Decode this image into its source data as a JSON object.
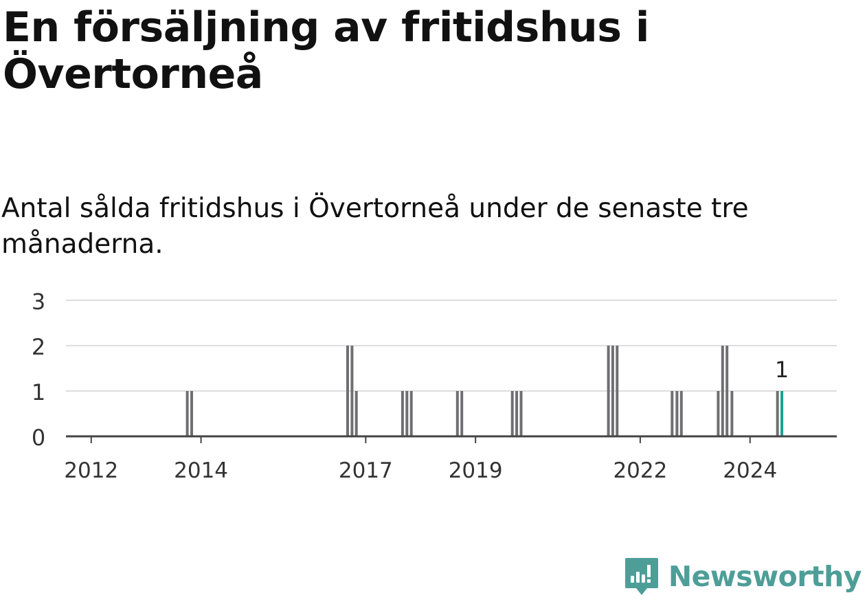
{
  "title": "En försäljning av fritidshus i Övertorneå",
  "subtitle": "Antal sålda fritidshus i Övertorneå under de senaste tre månaderna.",
  "brand": {
    "name": "Newsworthy",
    "color": "#4e9e98"
  },
  "chart_data": {
    "type": "bar",
    "ylim": [
      0,
      3
    ],
    "yticks": [
      "0",
      "1",
      "2",
      "3"
    ],
    "xlim": [
      2011.54,
      2025.58
    ],
    "xticks": [
      {
        "label": "2012",
        "value": 2012.0
      },
      {
        "label": "2014",
        "value": 2014.0
      },
      {
        "label": "2017",
        "value": 2017.0
      },
      {
        "label": "2019",
        "value": 2019.0
      },
      {
        "label": "2022",
        "value": 2022.0
      },
      {
        "label": "2024",
        "value": 2024.0
      }
    ],
    "grid": true,
    "bar_color": "#6f6f72",
    "highlight_color": "#1a9e8f",
    "series": [
      {
        "values": [
          {
            "x": 2013.75,
            "y": 1
          },
          {
            "x": 2013.83,
            "y": 1
          },
          {
            "x": 2016.67,
            "y": 2
          },
          {
            "x": 2016.75,
            "y": 2
          },
          {
            "x": 2016.83,
            "y": 1
          },
          {
            "x": 2017.67,
            "y": 1
          },
          {
            "x": 2017.75,
            "y": 1
          },
          {
            "x": 2017.83,
            "y": 1
          },
          {
            "x": 2018.67,
            "y": 1
          },
          {
            "x": 2018.75,
            "y": 1
          },
          {
            "x": 2019.67,
            "y": 1
          },
          {
            "x": 2019.75,
            "y": 1
          },
          {
            "x": 2019.83,
            "y": 1
          },
          {
            "x": 2021.42,
            "y": 2
          },
          {
            "x": 2021.5,
            "y": 2
          },
          {
            "x": 2021.58,
            "y": 2
          },
          {
            "x": 2022.58,
            "y": 1
          },
          {
            "x": 2022.67,
            "y": 1
          },
          {
            "x": 2022.75,
            "y": 1
          },
          {
            "x": 2023.42,
            "y": 1
          },
          {
            "x": 2023.5,
            "y": 2
          },
          {
            "x": 2023.58,
            "y": 2
          },
          {
            "x": 2023.67,
            "y": 1
          },
          {
            "x": 2024.5,
            "y": 1
          },
          {
            "x": 2024.58,
            "y": 1,
            "highlight": true,
            "label": "1"
          }
        ]
      }
    ]
  }
}
